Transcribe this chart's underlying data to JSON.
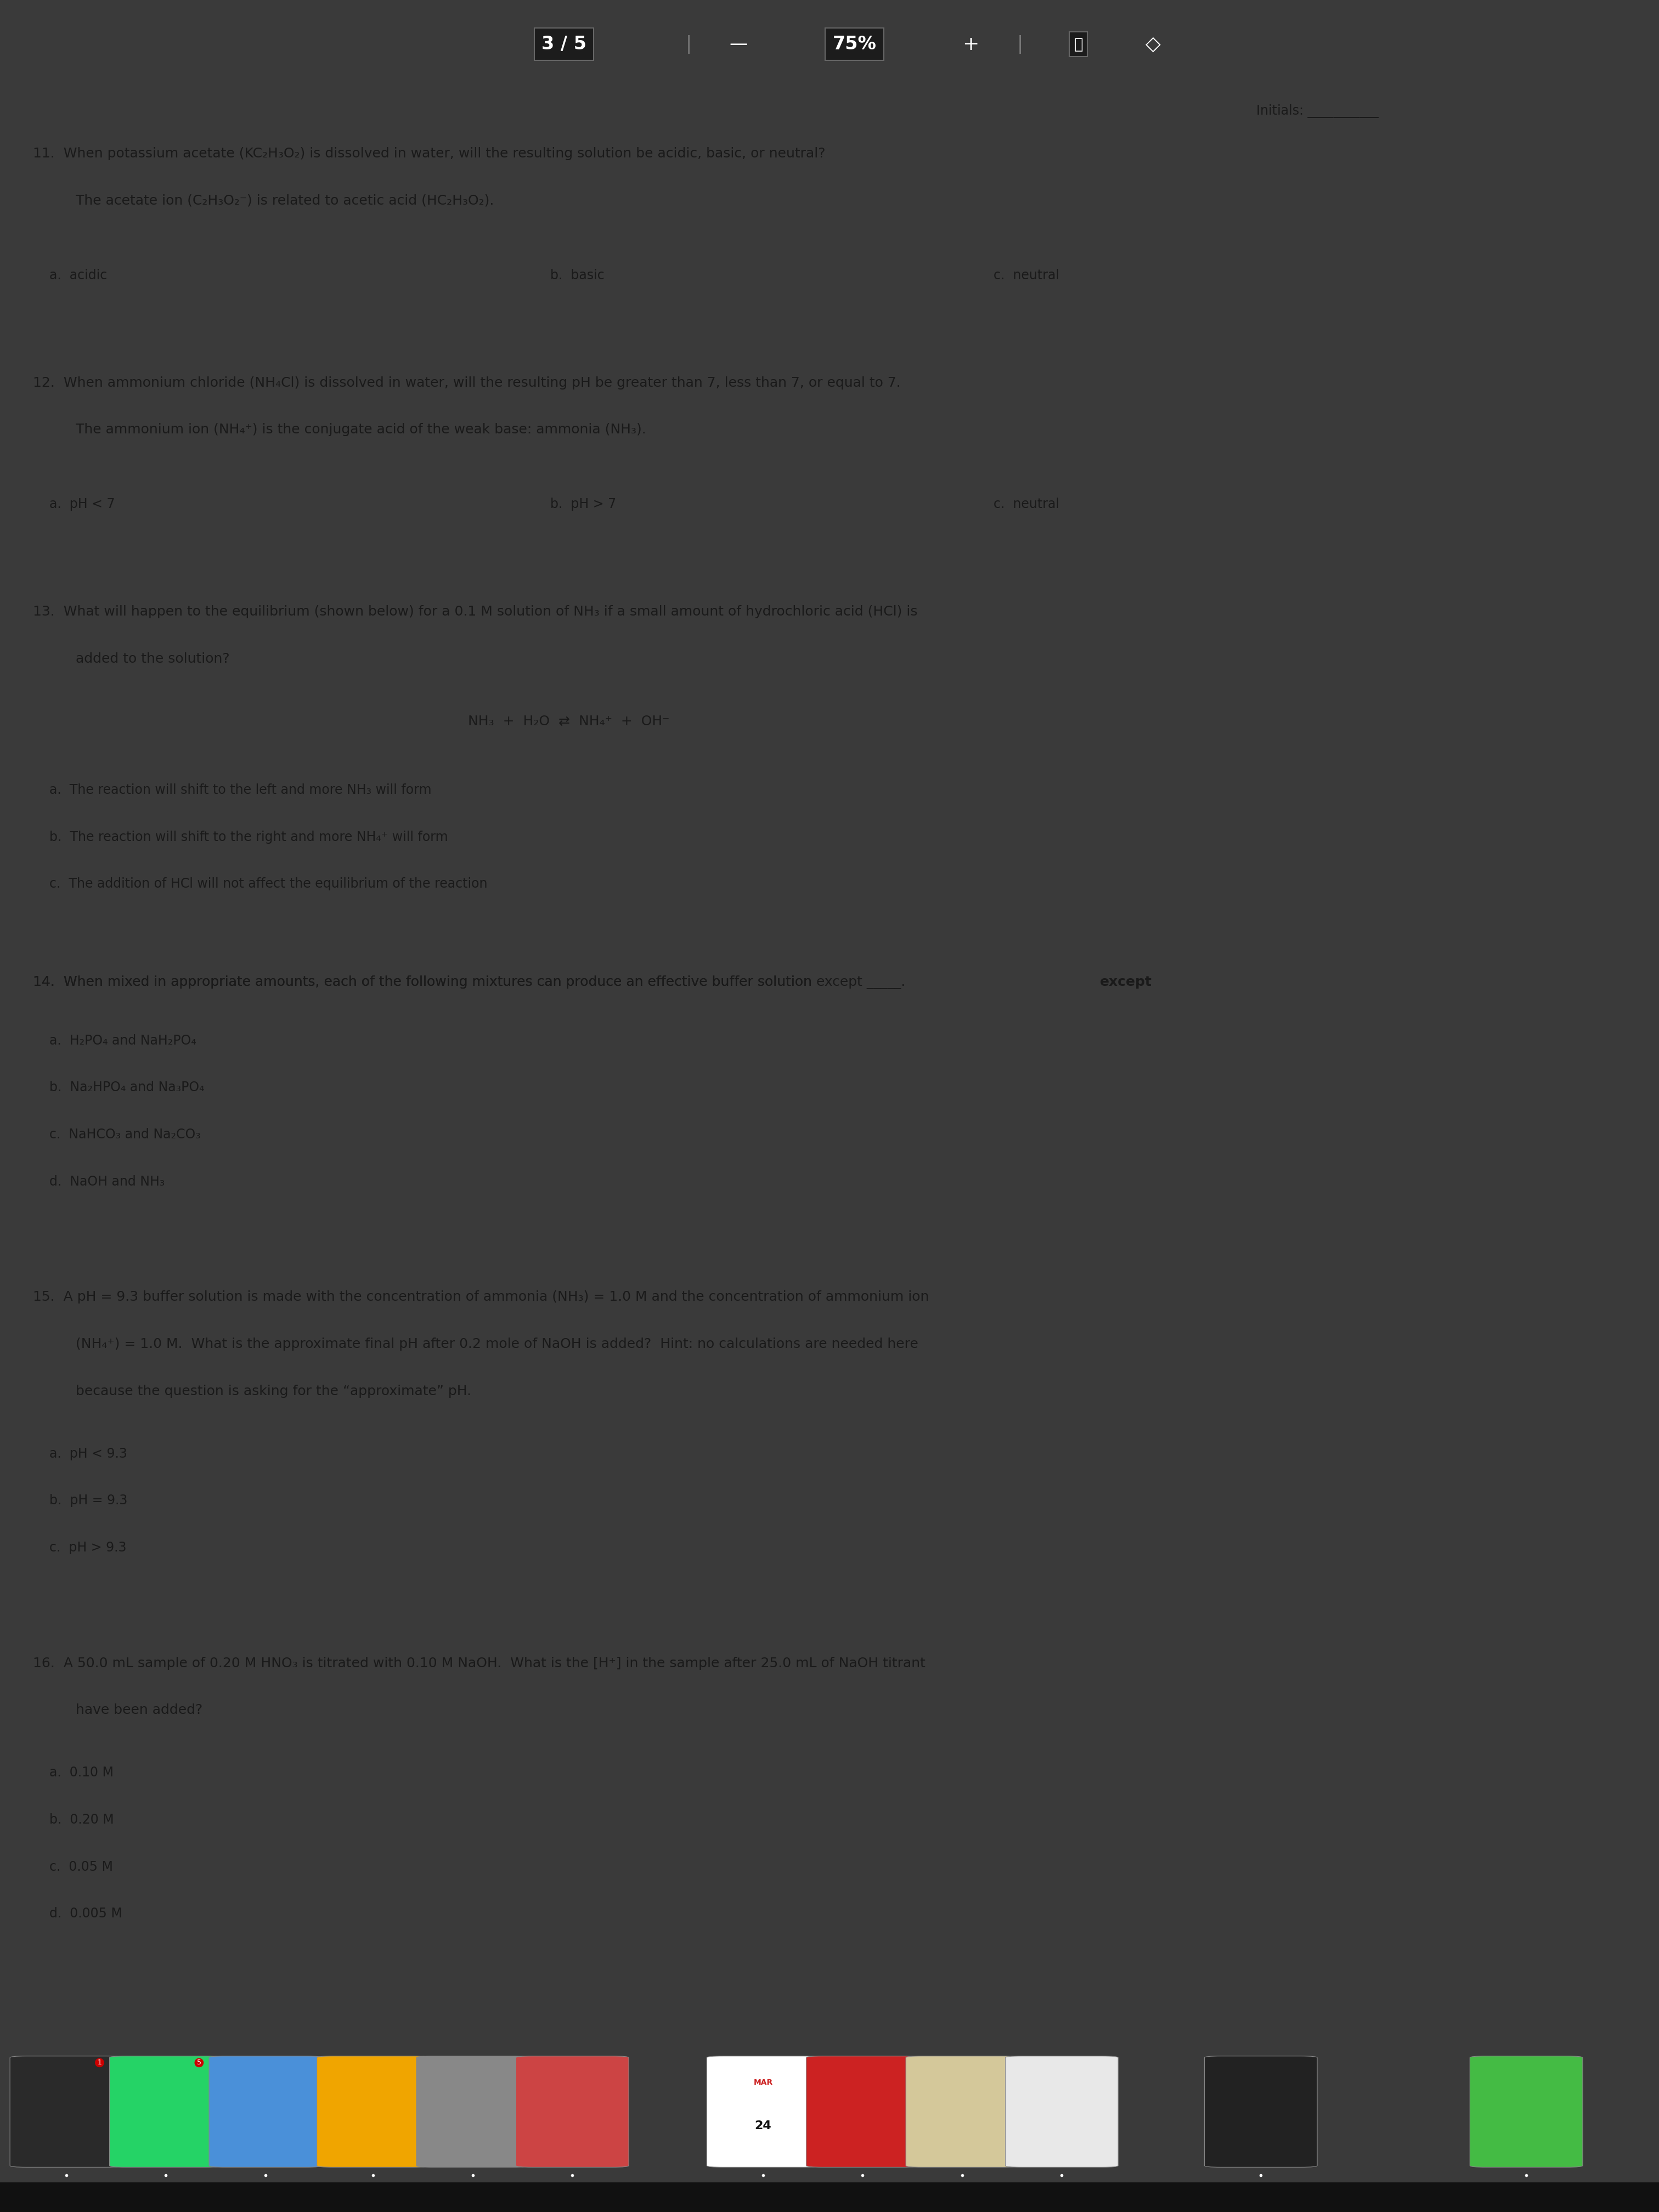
{
  "toolbar_bg": "#3a3a3a",
  "toolbar_text_color": "#ffffff",
  "page_bg": "#dedad5",
  "page_text_color": "#1a1a1a",
  "font_size_main": 18,
  "font_size_opts": 17,
  "font_size_initials": 15,
  "font_size_toolbar": 20,
  "q11_line1": "11.  When potassium acetate (KC₂H₃O₂) is dissolved in water, will the resulting solution be acidic, basic, or neutral?",
  "q11_line2": "      The acetate ion (C₂H₃O₂⁻) is related to acetic acid (HC₂H₃O₂).",
  "q11_opts": [
    "a.  acidic",
    "b.  basic",
    "c.  neutral"
  ],
  "q12_line1": "12.  When ammonium chloride (NH₄Cl) is dissolved in water, will the resulting pH be greater than 7, less than 7, or equal to 7.",
  "q12_line2": "      The ammonium ion (NH₄⁺) is the conjugate acid of the weak base: ammonia (NH₃).",
  "q12_opts": [
    "a.  pH < 7",
    "b.  pH > 7",
    "c.  neutral"
  ],
  "q13_line1": "13.  What will happen to the equilibrium (shown below) for a 0.1 M solution of NH₃ if a small amount of hydrochloric acid (HCl) is",
  "q13_line2": "      added to the solution?",
  "q13_equation": "NH₃  +  H₂O  ⇄  NH₄⁺  +  OH⁻",
  "q13_opts": [
    "a.  The reaction will shift to the left and more NH₃ will form",
    "b.  The reaction will shift to the right and more NH₄⁺ will form",
    "c.  The addition of HCl will not affect the equilibrium of the reaction"
  ],
  "q14_line1_a": "14.  When mixed in appropriate amounts, each of the following mixtures can produce an effective buffer solution ",
  "q14_line1_b": "except",
  "q14_line1_c": " _____.",
  "q14_opts": [
    "a.  H₂PO₄ and NaH₂PO₄",
    "b.  Na₂HPO₄ and Na₃PO₄",
    "c.  NaHCO₃ and Na₂CO₃",
    "d.  NaOH and NH₃"
  ],
  "q15_line1": "15.  A pH = 9.3 buffer solution is made with the concentration of ammonia (NH₃) = 1.0 M and the concentration of ammonium ion",
  "q15_line2": "      (NH₄⁺) = 1.0 M.  What is the approximate final pH after 0.2 mole of NaOH is added?  Hint: no calculations are needed here",
  "q15_line3": "      because the question is asking for the “approximate” pH.",
  "q15_opts": [
    "a.  pH < 9.3",
    "b.  pH = 9.3",
    "c.  pH > 9.3"
  ],
  "q16_line1": "16.  A 50.0 mL sample of 0.20 M HNO₃ is titrated with 0.10 M NaOH.  What is the [H⁺] in the sample after 25.0 mL of NaOH titrant",
  "q16_line2": "      have been added?",
  "q16_opts": [
    "a.  0.10 M",
    "b.  0.20 M",
    "c.  0.05 M",
    "d.  0.005 M"
  ],
  "dock_bg": "#5a5a5a",
  "dock_bottom_bg": "#1a1a1a",
  "dock_icon_colors": [
    "#2a2a2a",
    "#25d366",
    "#4a90d9",
    "#f0a500",
    "#888888",
    "#cc4444",
    "#ffffff",
    "#cc2222",
    "#d4c89a",
    "#e8e8e8",
    "#222222",
    "#44bb44"
  ]
}
